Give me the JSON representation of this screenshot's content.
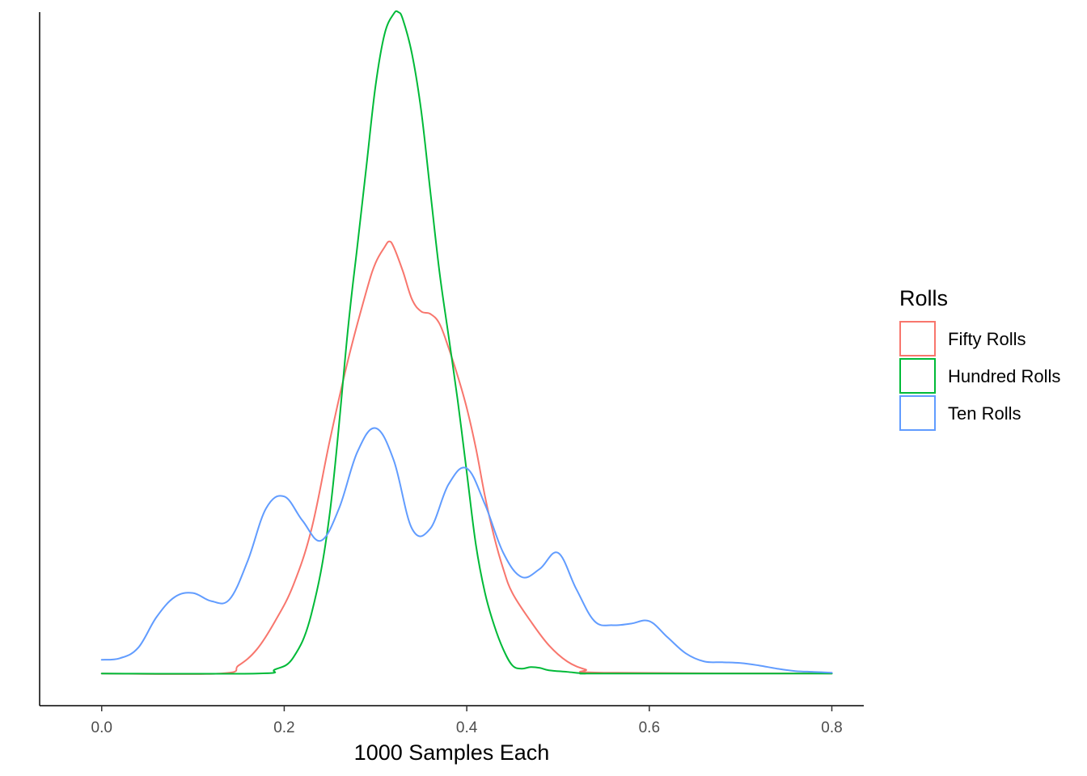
{
  "chart_data": {
    "type": "line",
    "title": "",
    "xlabel": "1000 Samples Each",
    "ylabel": "",
    "xlim": [
      -0.068,
      0.835
    ],
    "ylim": [
      -0.4,
      8.22
    ],
    "x_ticks": [
      "0.0",
      "0.2",
      "0.4",
      "0.6",
      "0.8"
    ],
    "y_axis_labels_shown": false,
    "grid": false,
    "legend": {
      "title": "Rolls",
      "position": "right"
    },
    "series": [
      {
        "name": "Fifty Rolls",
        "color": "#F8766D",
        "x": [
          0.0,
          0.13,
          0.15,
          0.17,
          0.19,
          0.21,
          0.23,
          0.25,
          0.27,
          0.29,
          0.3,
          0.31,
          0.315,
          0.32,
          0.33,
          0.34,
          0.35,
          0.36,
          0.37,
          0.38,
          0.39,
          0.4,
          0.41,
          0.42,
          0.43,
          0.44,
          0.45,
          0.47,
          0.49,
          0.51,
          0.53,
          0.55,
          0.8
        ],
        "y": [
          0.0,
          0.0,
          0.1,
          0.3,
          0.65,
          1.1,
          1.8,
          2.9,
          3.9,
          4.75,
          5.1,
          5.3,
          5.37,
          5.3,
          5.0,
          4.65,
          4.5,
          4.47,
          4.35,
          4.05,
          3.7,
          3.3,
          2.8,
          2.2,
          1.7,
          1.3,
          1.0,
          0.65,
          0.35,
          0.15,
          0.05,
          0.01,
          0.0
        ]
      },
      {
        "name": "Hundred Rolls",
        "color": "#00BA38",
        "x": [
          0.0,
          0.17,
          0.19,
          0.21,
          0.23,
          0.25,
          0.27,
          0.28,
          0.29,
          0.3,
          0.31,
          0.32,
          0.325,
          0.33,
          0.34,
          0.35,
          0.36,
          0.37,
          0.38,
          0.39,
          0.4,
          0.41,
          0.42,
          0.43,
          0.44,
          0.45,
          0.46,
          0.47,
          0.48,
          0.49,
          0.51,
          0.53,
          0.55,
          0.8
        ],
        "y": [
          0.0,
          0.0,
          0.05,
          0.2,
          0.75,
          2.0,
          4.3,
          5.3,
          6.3,
          7.3,
          7.95,
          8.2,
          8.22,
          8.13,
          7.7,
          7.0,
          6.0,
          5.0,
          4.2,
          3.4,
          2.5,
          1.6,
          1.0,
          0.6,
          0.3,
          0.1,
          0.06,
          0.08,
          0.07,
          0.04,
          0.02,
          0.0,
          0.0,
          0.0
        ]
      },
      {
        "name": "Ten Rolls",
        "color": "#619CFF",
        "x": [
          0.0,
          0.02,
          0.04,
          0.06,
          0.08,
          0.1,
          0.12,
          0.14,
          0.16,
          0.18,
          0.2,
          0.22,
          0.24,
          0.26,
          0.28,
          0.3,
          0.32,
          0.34,
          0.36,
          0.38,
          0.4,
          0.42,
          0.44,
          0.46,
          0.48,
          0.5,
          0.52,
          0.54,
          0.56,
          0.58,
          0.6,
          0.62,
          0.64,
          0.66,
          0.68,
          0.7,
          0.72,
          0.74,
          0.76,
          0.78,
          0.8
        ],
        "y": [
          0.17,
          0.19,
          0.32,
          0.7,
          0.95,
          1.0,
          0.9,
          0.92,
          1.4,
          2.05,
          2.2,
          1.9,
          1.65,
          2.05,
          2.75,
          3.05,
          2.65,
          1.8,
          1.8,
          2.35,
          2.55,
          2.1,
          1.5,
          1.2,
          1.3,
          1.5,
          1.05,
          0.65,
          0.6,
          0.62,
          0.65,
          0.45,
          0.25,
          0.15,
          0.14,
          0.13,
          0.1,
          0.06,
          0.03,
          0.02,
          0.01
        ]
      }
    ]
  }
}
